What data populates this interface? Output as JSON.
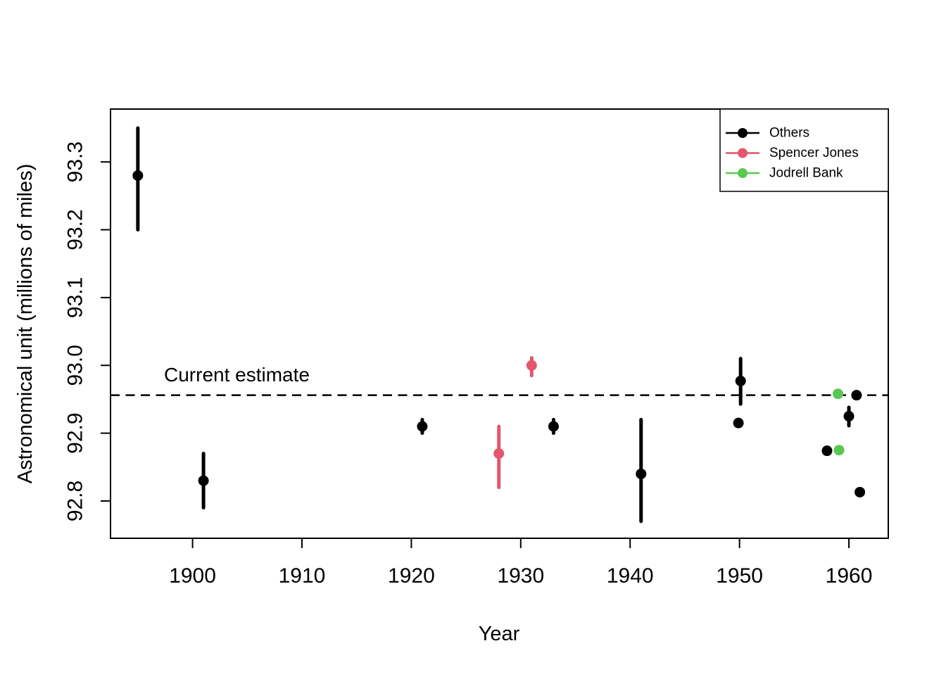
{
  "chart_data": {
    "type": "scatter",
    "title": "",
    "xlabel": "Year",
    "ylabel": "Astronomical unit (millions of miles)",
    "xlim": [
      1892.5,
      1963.6
    ],
    "ylim": [
      92.745,
      93.378
    ],
    "x_ticks": [
      1900,
      1910,
      1920,
      1930,
      1940,
      1950,
      1960
    ],
    "x_tick_labels": [
      "1900",
      "1910",
      "1920",
      "1930",
      "1940",
      "1950",
      "1960"
    ],
    "y_ticks": [
      92.8,
      92.9,
      93.0,
      93.1,
      93.2,
      93.3
    ],
    "y_tick_labels": [
      "92.8",
      "92.9",
      "93.0",
      "93.1",
      "93.2",
      "93.3"
    ],
    "grid": "off",
    "reference_line": {
      "value": 92.956,
      "label": "Current estimate",
      "style": "dashed",
      "color": "#000000"
    },
    "legend": {
      "position": "top-right",
      "entries": [
        {
          "label": "Others",
          "color": "#000000"
        },
        {
          "label": "Spencer Jones",
          "color": "#E4556E"
        },
        {
          "label": "Jodrell Bank",
          "color": "#5AC850"
        }
      ]
    },
    "series": [
      {
        "name": "Others",
        "color": "#000000",
        "marker": "circle",
        "points": [
          {
            "x": 1895,
            "y": 93.28,
            "lo": 93.2,
            "hi": 93.35
          },
          {
            "x": 1901,
            "y": 92.83,
            "lo": 92.79,
            "hi": 92.87
          },
          {
            "x": 1921,
            "y": 92.91,
            "lo": 92.9,
            "hi": 92.92
          },
          {
            "x": 1933,
            "y": 92.91,
            "lo": 92.9,
            "hi": 92.92
          },
          {
            "x": 1941,
            "y": 92.84,
            "lo": 92.77,
            "hi": 92.92
          },
          {
            "x": 1950.1,
            "y": 92.977,
            "lo": 92.943,
            "hi": 93.01
          },
          {
            "x": 1949.9,
            "y": 92.915
          },
          {
            "x": 1958,
            "y": 92.874
          },
          {
            "x": 1960,
            "y": 92.925,
            "lo": 92.911,
            "hi": 92.938
          },
          {
            "x": 1960.7,
            "y": 92.956
          },
          {
            "x": 1961,
            "y": 92.813
          }
        ]
      },
      {
        "name": "Spencer Jones",
        "color": "#E4556E",
        "marker": "circle",
        "points": [
          {
            "x": 1928,
            "y": 92.87,
            "lo": 92.82,
            "hi": 92.91
          },
          {
            "x": 1931,
            "y": 93.0,
            "lo": 92.985,
            "hi": 93.011
          }
        ]
      },
      {
        "name": "Jodrell Bank",
        "color": "#5AC850",
        "marker": "circle",
        "points": [
          {
            "x": 1959,
            "y": 92.958
          },
          {
            "x": 1959.1,
            "y": 92.875
          }
        ]
      }
    ]
  }
}
